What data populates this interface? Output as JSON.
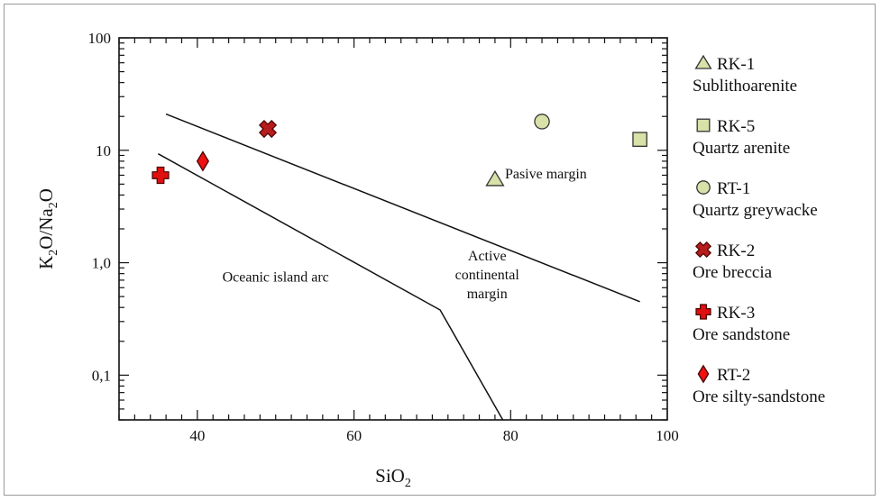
{
  "chart_data": {
    "type": "scatter",
    "title": "",
    "xlabel": "SiO",
    "xlabel_sub": "2",
    "ylabel_parts": [
      "K",
      "2",
      "O/Na",
      "2",
      "O"
    ],
    "x_scale": "linear",
    "y_scale": "log",
    "xlim": [
      30,
      100
    ],
    "ylim": [
      0.04,
      100
    ],
    "x_ticks": [
      {
        "value": 40,
        "label": "40"
      },
      {
        "value": 60,
        "label": "60"
      },
      {
        "value": 80,
        "label": "80"
      },
      {
        "value": 100,
        "label": "100"
      }
    ],
    "y_ticks": [
      {
        "value": 0.1,
        "label": "0,1"
      },
      {
        "value": 1,
        "label": "1,0"
      },
      {
        "value": 10,
        "label": "10"
      },
      {
        "value": 100,
        "label": "100"
      }
    ],
    "grid": false,
    "legend_position": "right",
    "boundary_lines": [
      {
        "points": [
          [
            36,
            21
          ],
          [
            96.5,
            0.45
          ]
        ]
      },
      {
        "points": [
          [
            35,
            9.3
          ],
          [
            71,
            0.38
          ],
          [
            79,
            0.04
          ]
        ]
      }
    ],
    "region_labels": [
      {
        "lines": [
          "Pasive margin"
        ],
        "x": 84.5,
        "y": 5.6
      },
      {
        "lines": [
          "Active",
          "continental",
          "margin"
        ],
        "x": 77,
        "y": 1.05
      },
      {
        "lines": [
          "Oceanic island arc"
        ],
        "x": 50,
        "y": 0.68
      }
    ],
    "series": [
      {
        "name": "RK-1",
        "description": "Sublithoarenite",
        "marker": "triangle",
        "fill": "#d9e0a8",
        "stroke": "#333333",
        "points": [
          {
            "x": 78,
            "y": 5.5
          }
        ]
      },
      {
        "name": "RK-5",
        "description": "Quartz arenite",
        "marker": "square",
        "fill": "#d9e0a8",
        "stroke": "#333333",
        "points": [
          {
            "x": 96.5,
            "y": 12.5
          }
        ]
      },
      {
        "name": "RT-1",
        "description": "Quartz greywacke",
        "marker": "circle",
        "fill": "#d9e0a8",
        "stroke": "#333333",
        "points": [
          {
            "x": 84,
            "y": 18
          }
        ]
      },
      {
        "name": "RK-2",
        "description": "Ore breccia",
        "marker": "x",
        "fill": "#b71c1c",
        "stroke": "#4a0000",
        "points": [
          {
            "x": 49,
            "y": 15.5
          }
        ]
      },
      {
        "name": "RK-3",
        "description": "Ore sandstone",
        "marker": "plus",
        "fill": "#e01010",
        "stroke": "#4a0000",
        "points": [
          {
            "x": 35.3,
            "y": 6
          }
        ]
      },
      {
        "name": "RT-2",
        "description": "Ore silty-sandstone",
        "marker": "diamond",
        "fill": "#ee1111",
        "stroke": "#4a0000",
        "points": [
          {
            "x": 40.7,
            "y": 8
          }
        ]
      }
    ]
  }
}
